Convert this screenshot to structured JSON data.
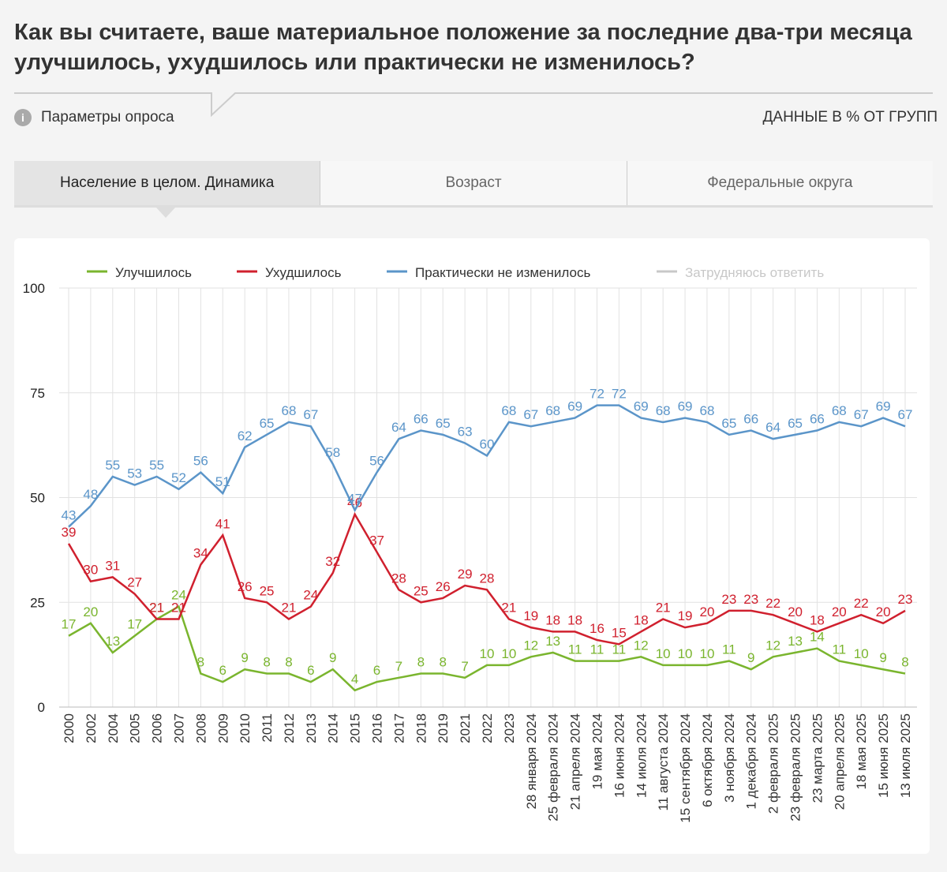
{
  "header": {
    "title": "Как вы считаете, ваше материальное положение за последние два-три месяца улучшилось, ухудшилось или практически не изменилось?",
    "params": "Параметры опроса",
    "units_note": "ДАННЫЕ В % ОТ ГРУПП"
  },
  "tabs": [
    "Население в целом. Динамика",
    "Возраст",
    "Федеральные округа"
  ],
  "chart_data": {
    "type": "line",
    "categories": [
      "2000",
      "2002",
      "2004",
      "2005",
      "2006",
      "2007",
      "2008",
      "2009",
      "2010",
      "2011",
      "2012",
      "2013",
      "2014",
      "2015",
      "2016",
      "2017",
      "2018",
      "2019",
      "2021",
      "2022",
      "2023",
      "28 января 2024",
      "25 февраля 2024",
      "21 апреля 2024",
      "19 мая 2024",
      "16 июня 2024",
      "14 июля 2024",
      "11 августа 2024",
      "15 сентября 2024",
      "6 октября 2024",
      "3 ноября 2024",
      "1 декабря 2024",
      "2 февраля 2025",
      "23 февраля 2025",
      "23 марта 2025",
      "20 апреля 2025",
      "18 мая 2025",
      "15 июня 2025",
      "13 июля 2025"
    ],
    "series": [
      {
        "name": "Улучшилось",
        "color": "#7ab52e",
        "values": [
          17,
          20,
          13,
          17,
          21,
          24,
          8,
          6,
          9,
          8,
          8,
          6,
          9,
          4,
          6,
          7,
          8,
          8,
          7,
          10,
          10,
          12,
          13,
          11,
          11,
          11,
          12,
          10,
          10,
          10,
          11,
          9,
          12,
          13,
          14,
          11,
          10,
          9,
          8
        ]
      },
      {
        "name": "Ухудшилось",
        "color": "#d0202e",
        "values": [
          39,
          30,
          31,
          27,
          21,
          21,
          34,
          41,
          26,
          25,
          21,
          24,
          32,
          46,
          37,
          28,
          25,
          26,
          29,
          28,
          21,
          19,
          18,
          18,
          16,
          15,
          18,
          21,
          19,
          20,
          23,
          23,
          22,
          20,
          18,
          20,
          22,
          20,
          23
        ]
      },
      {
        "name": "Практически не изменилось",
        "color": "#5b95c9",
        "values": [
          43,
          48,
          55,
          53,
          55,
          52,
          56,
          51,
          62,
          65,
          68,
          67,
          58,
          47,
          56,
          64,
          66,
          65,
          63,
          60,
          68,
          67,
          68,
          69,
          72,
          72,
          69,
          68,
          69,
          68,
          65,
          66,
          64,
          65,
          66,
          68,
          67,
          69,
          67
        ]
      },
      {
        "name": "Затрудняюсь ответить",
        "color": "#c8c8c8",
        "hidden": true
      }
    ],
    "ylim": [
      0,
      100
    ],
    "yticks": [
      0,
      25,
      50,
      75,
      100
    ],
    "grid": true
  }
}
